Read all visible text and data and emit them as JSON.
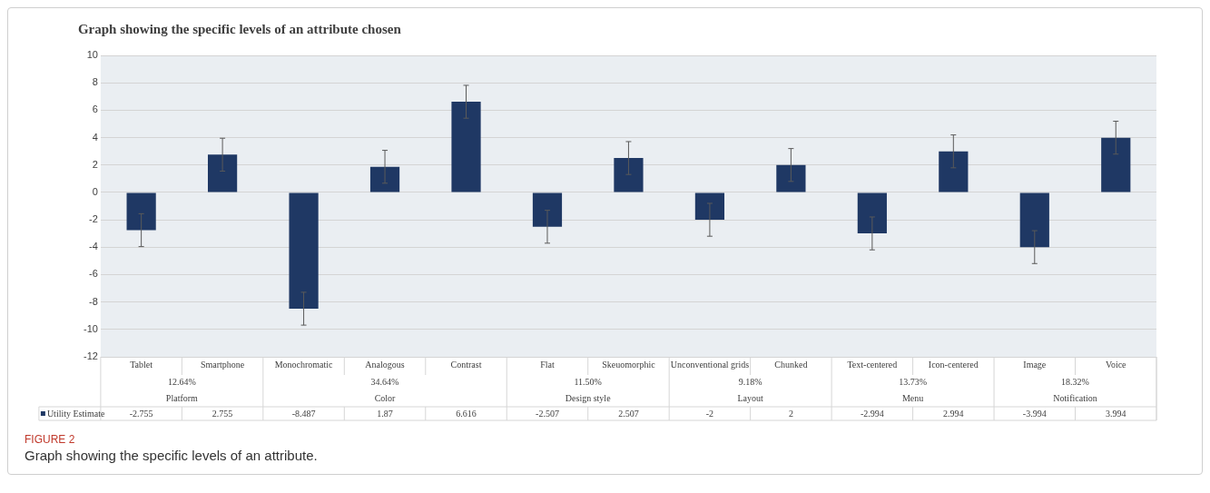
{
  "chart_data": {
    "type": "bar",
    "title": "Graph showing the specific levels of an attribute chosen",
    "categories": [
      "Tablet",
      "Smartphone",
      "Monochromatic",
      "Analogous",
      "Contrast",
      "Flat",
      "Skeuomorphic",
      "Unconventional grids",
      "Chunked",
      "Text-centered",
      "Icon-centered",
      "Image",
      "Voice"
    ],
    "series": [
      {
        "name": "Utility Estimate",
        "color": "#1f3864",
        "values": [
          -2.755,
          2.755,
          -8.487,
          1.87,
          6.616,
          -2.507,
          2.507,
          -2,
          2,
          -2.994,
          2.994,
          -3.994,
          3.994
        ],
        "errors": [
          1.2,
          1.2,
          1.2,
          1.2,
          1.2,
          1.2,
          1.2,
          1.2,
          1.2,
          1.2,
          1.2,
          1.2,
          1.2
        ]
      }
    ],
    "ylim": [
      -12,
      10
    ],
    "yticks": [
      -12,
      -10,
      -8,
      -6,
      -4,
      -2,
      0,
      2,
      4,
      6,
      8,
      10
    ],
    "grid": "y",
    "legend": "bottom left",
    "data_labels": true,
    "annotations": [
      "12.64%",
      "Platform",
      "34.64%",
      "Color",
      "11.50%",
      "Design style",
      "9.18%",
      "Layout",
      "13.73%",
      "Menu",
      "18.32%",
      "Notification",
      "FIGURE 2",
      "Graph showing the specific levels of an attribute."
    ]
  }
}
